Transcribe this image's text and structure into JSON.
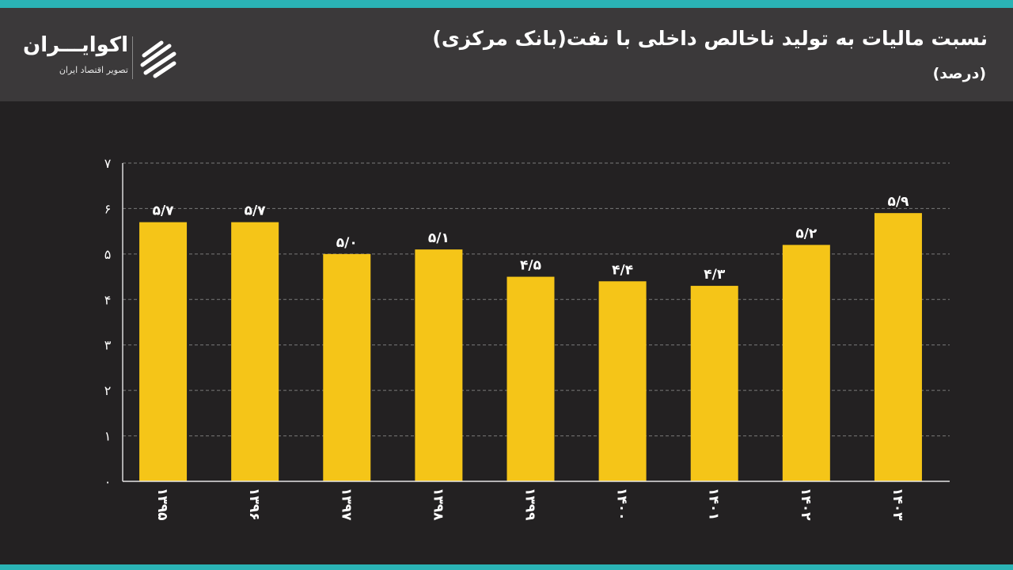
{
  "header": {
    "title": "نسبت مالیات به تولید ناخالص داخلی با نفت(بانک مرکزی)",
    "subtitle": "(درصد)"
  },
  "brand": {
    "name": "اکوایـــران",
    "tagline": "تصویر اقتصاد ایران",
    "logo_icon": "ecoiran-logo-icon"
  },
  "colors": {
    "background": "#232122",
    "header": "#3b393a",
    "accent_stripe": "#2ab3b5",
    "bar": "#f5c518",
    "text": "#ffffff",
    "grid": "#7a7a7a"
  },
  "chart_data": {
    "type": "bar",
    "categories": [
      "۱۳۹۵",
      "۱۳۹۶",
      "۱۳۹۷",
      "۱۳۹۸",
      "۱۳۹۹",
      "۱۴۰۰",
      "۱۴۰۱",
      "۱۴۰۲",
      "۱۴۰۳"
    ],
    "values": [
      5.7,
      5.7,
      5.0,
      5.1,
      4.5,
      4.4,
      4.3,
      5.2,
      5.9
    ],
    "value_labels": [
      "۵/۷",
      "۵/۷",
      "۵/۰",
      "۵/۱",
      "۴/۵",
      "۴/۴",
      "۴/۳",
      "۵/۲",
      "۵/۹"
    ],
    "y_ticks": [
      0,
      1,
      2,
      3,
      4,
      5,
      6,
      7
    ],
    "y_tick_labels": [
      "۰",
      "۱",
      "۲",
      "۳",
      "۴",
      "۵",
      "۶",
      "۷"
    ],
    "ylim": [
      0,
      7
    ],
    "grid": true,
    "grid_style": "dashed",
    "legend": "none",
    "xlabel": "",
    "ylabel": ""
  }
}
